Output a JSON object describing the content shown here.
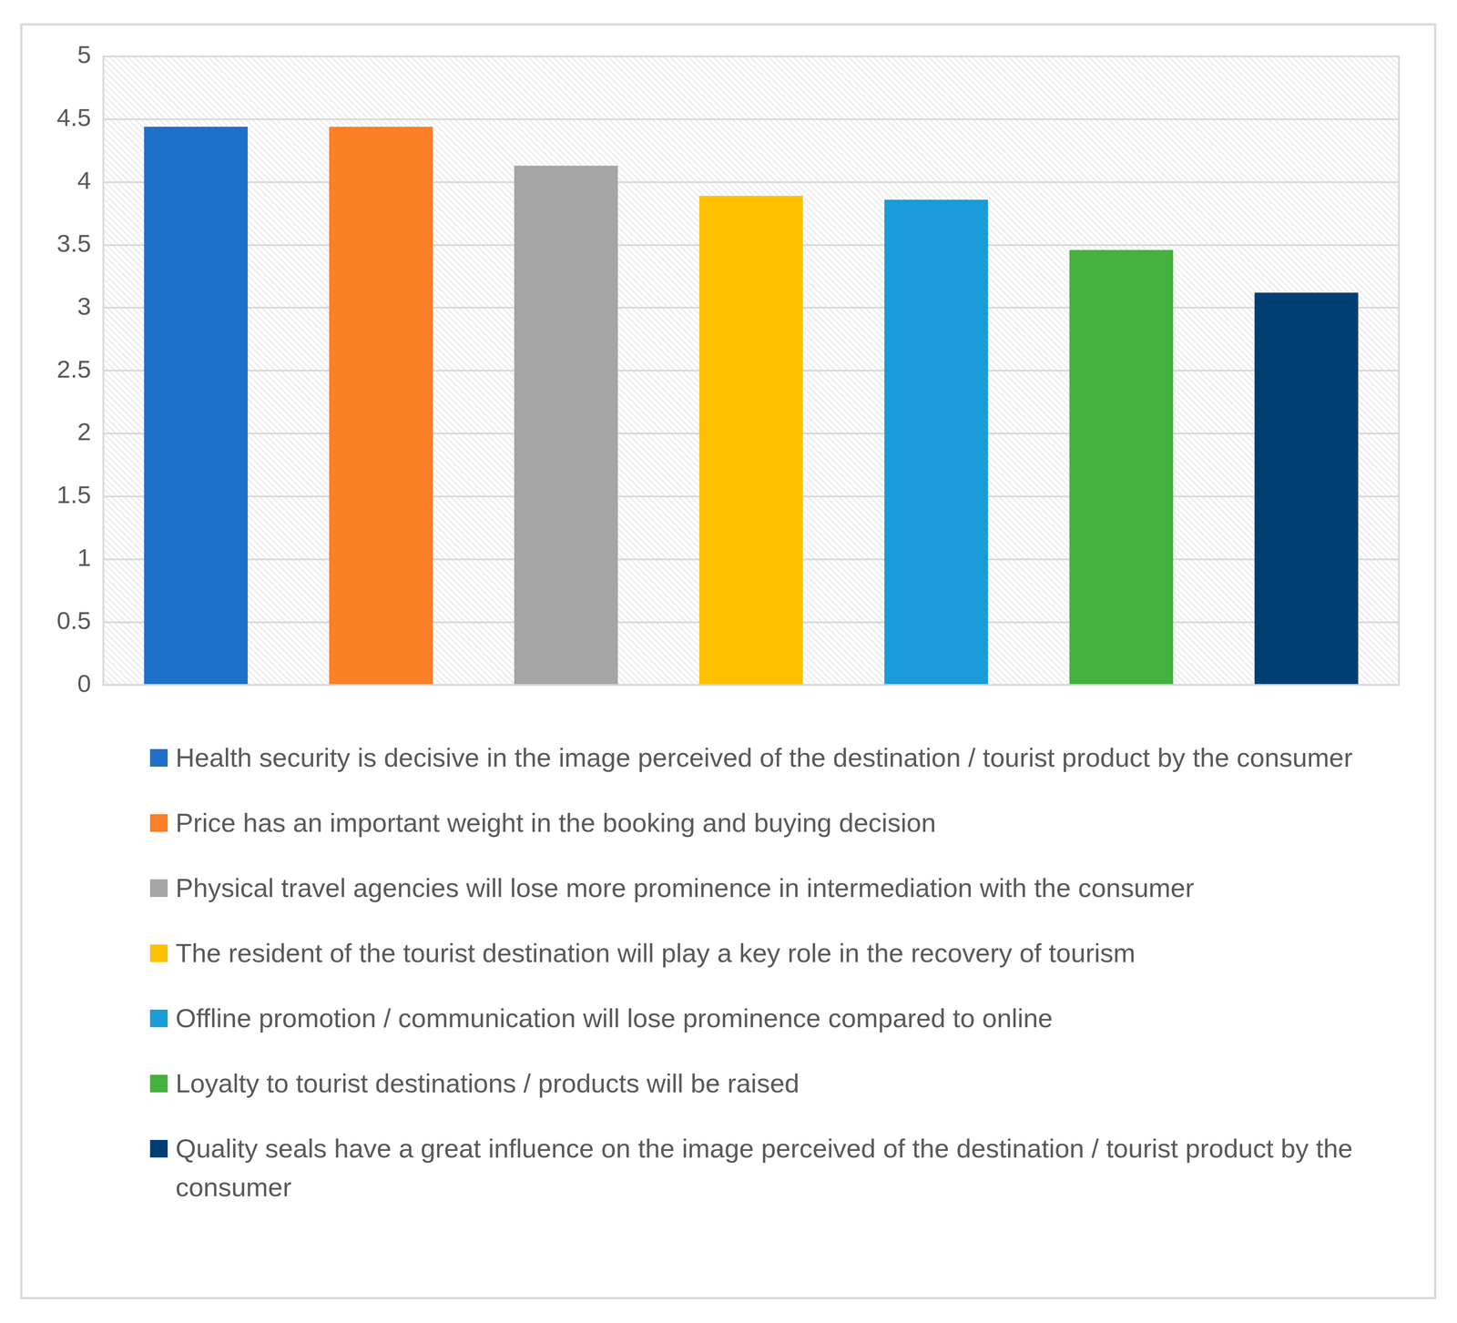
{
  "chart_data": {
    "type": "bar",
    "categories": [
      "Health security is decisive in the image perceived of the destination / tourist product by the consumer",
      "Price has an important weight in the booking and buying decision",
      "Physical travel agencies will lose more prominence in intermediation with the consumer",
      "The resident of the tourist destination will play a key role in the recovery of tourism",
      "Offline promotion / communication will lose prominence compared to online",
      "Loyalty to tourist destinations / products will be raised",
      "Quality seals have a great influence on the image perceived of the destination / tourist product by the consumer"
    ],
    "values": [
      4.44,
      4.44,
      4.13,
      3.89,
      3.86,
      3.46,
      3.12
    ],
    "colors": [
      "#1f70c8",
      "#fd7f28",
      "#a5a5a5",
      "#ffc000",
      "#1a9cd8",
      "#44b03d",
      "#003f74"
    ],
    "ylim": [
      0,
      5
    ],
    "yticks": [
      0,
      0.5,
      1,
      1.5,
      2,
      2.5,
      3,
      3.5,
      4,
      4.5,
      5
    ],
    "grid": true,
    "legend": "bottom",
    "tick_labels": "y"
  }
}
